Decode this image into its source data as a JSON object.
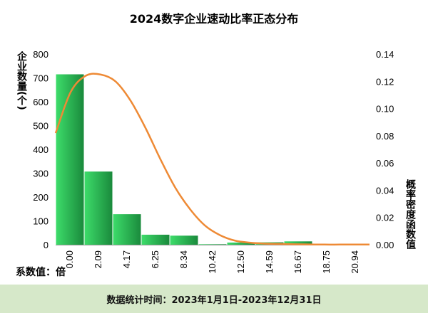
{
  "chart_data": {
    "type": "bar",
    "title": "2024数字企业速动比率正态分布",
    "ylabel_left": "企业数量(个)",
    "ylabel_right": "概率密度函数值",
    "xlabel": "系数值：倍",
    "categories": [
      "0.00",
      "2.09",
      "4.17",
      "6.25",
      "8.34",
      "10.42",
      "12.50",
      "14.59",
      "16.67",
      "18.75",
      "20.94"
    ],
    "bars": [
      {
        "from": "0.00",
        "to": "2.09",
        "value": 715
      },
      {
        "from": "2.09",
        "to": "4.17",
        "value": 307
      },
      {
        "from": "4.17",
        "to": "6.25",
        "value": 128
      },
      {
        "from": "6.25",
        "to": "8.34",
        "value": 42
      },
      {
        "from": "8.34",
        "to": "10.42",
        "value": 38
      },
      {
        "from": "10.42",
        "to": "12.50",
        "value": 2
      },
      {
        "from": "12.50",
        "to": "14.59",
        "value": 9
      },
      {
        "from": "14.59",
        "to": "16.67",
        "value": 10
      },
      {
        "from": "16.67",
        "to": "18.75",
        "value": 14
      },
      {
        "from": "18.75",
        "to": "20.94",
        "value": 3
      },
      {
        "from": "20.94",
        "to": "",
        "value": 2
      }
    ],
    "left_axis": {
      "min": 0,
      "max": 800,
      "ticks": [
        "0",
        "100",
        "200",
        "300",
        "400",
        "500",
        "600",
        "700",
        "800"
      ]
    },
    "right_axis": {
      "min": 0,
      "max": 0.14,
      "ticks": [
        "0.00",
        "0.02",
        "0.04",
        "0.06",
        "0.08",
        "0.10",
        "0.12",
        "0.14"
      ]
    },
    "density_curve": {
      "x": [
        0,
        1,
        2,
        3,
        4,
        5,
        6,
        7,
        8,
        9,
        10,
        11,
        12,
        13,
        14,
        15,
        16,
        17,
        18,
        19,
        20,
        21
      ],
      "y": [
        0.082,
        0.112,
        0.124,
        0.125,
        0.12,
        0.106,
        0.086,
        0.063,
        0.042,
        0.026,
        0.014,
        0.007,
        0.003,
        0.0015,
        0.0008,
        0.0005,
        0.0003,
        0.0002,
        0.0001,
        0.0001,
        0.0001,
        0.0001
      ]
    },
    "grid": false,
    "colors": {
      "bar_dark": "#1a8a3c",
      "bar_light": "#3ddc6a",
      "curve": "#ee8a35",
      "axis": "#999999"
    }
  },
  "footer": {
    "text": "数据统计时间：2023年1月1日-2023年12月31日",
    "background": "#d6e8c9"
  }
}
